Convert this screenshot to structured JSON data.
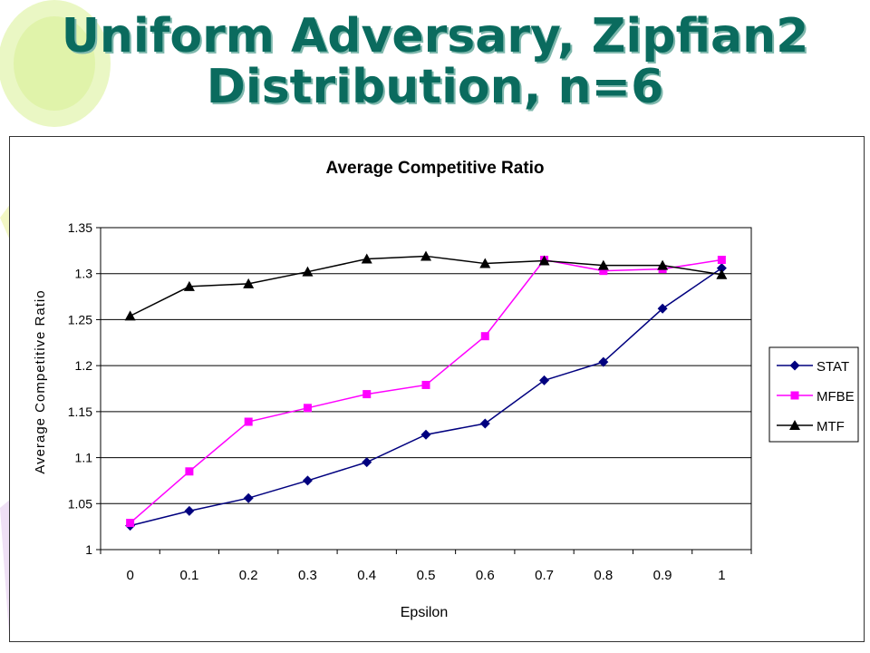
{
  "slide": {
    "title_line1": "Uniform Adversary, Zipfian2",
    "title_line2": "Distribution, n=6"
  },
  "colors": {
    "title": "#0a6b5e",
    "plot_background": "#ffffff",
    "gridline": "#000000"
  },
  "chart_data": {
    "type": "line",
    "title": "Average Competitive Ratio",
    "xlabel": "Epsilon",
    "ylabel": "Average Competitive Ratio",
    "categories": [
      "0",
      "0.1",
      "0.2",
      "0.3",
      "0.4",
      "0.5",
      "0.6",
      "0.7",
      "0.8",
      "0.9",
      "1"
    ],
    "ylim": [
      1,
      1.35
    ],
    "yticks": [
      "1",
      "1.05",
      "1.1",
      "1.15",
      "1.2",
      "1.25",
      "1.3",
      "1.35"
    ],
    "grid": "horizontal",
    "legend_position": "right",
    "series": [
      {
        "name": "STAT",
        "color": "#00007f",
        "marker": "diamond",
        "values": [
          1.026,
          1.042,
          1.056,
          1.075,
          1.095,
          1.125,
          1.137,
          1.184,
          1.204,
          1.262,
          1.306
        ]
      },
      {
        "name": "MFBE",
        "color": "#ff00ff",
        "marker": "square",
        "values": [
          1.029,
          1.085,
          1.139,
          1.154,
          1.169,
          1.179,
          1.232,
          1.315,
          1.303,
          1.305,
          1.315
        ]
      },
      {
        "name": "MTF",
        "color": "#000000",
        "marker": "triangle",
        "values": [
          1.254,
          1.286,
          1.289,
          1.302,
          1.316,
          1.319,
          1.311,
          1.314,
          1.309,
          1.309,
          1.299
        ]
      }
    ]
  }
}
